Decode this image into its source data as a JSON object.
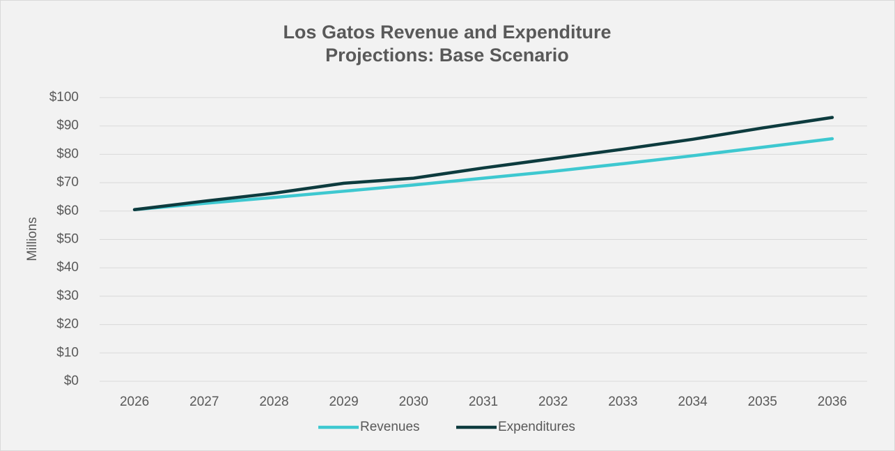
{
  "chart_data": {
    "type": "line",
    "title": "Los Gatos Revenue and Expenditure Projections: Base Scenario",
    "y_label": "Millions",
    "categories": [
      "2026",
      "2027",
      "2028",
      "2029",
      "2030",
      "2031",
      "2032",
      "2033",
      "2034",
      "2035",
      "2036"
    ],
    "series": [
      {
        "name": "Revenues",
        "color": "#3ec8d0",
        "values": [
          60.5,
          62.7,
          64.8,
          67.0,
          69.2,
          71.6,
          74.0,
          76.7,
          79.5,
          82.5,
          85.5
        ]
      },
      {
        "name": "Expenditures",
        "color": "#0d3b3e",
        "values": [
          60.5,
          63.5,
          66.3,
          69.8,
          71.6,
          75.2,
          78.5,
          81.8,
          85.3,
          89.3,
          93.0
        ]
      }
    ],
    "ylim": [
      0,
      100
    ],
    "yticks": [
      {
        "value": 0,
        "label": "$0"
      },
      {
        "value": 10,
        "label": "$10"
      },
      {
        "value": 20,
        "label": "$20"
      },
      {
        "value": 30,
        "label": "$30"
      },
      {
        "value": 40,
        "label": "$40"
      },
      {
        "value": 50,
        "label": "$50"
      },
      {
        "value": 60,
        "label": "$60"
      },
      {
        "value": 70,
        "label": "$70"
      },
      {
        "value": 80,
        "label": "$80"
      },
      {
        "value": 90,
        "label": "$90"
      },
      {
        "value": 100,
        "label": "$100"
      }
    ],
    "grid": true,
    "legend": "bottom"
  }
}
